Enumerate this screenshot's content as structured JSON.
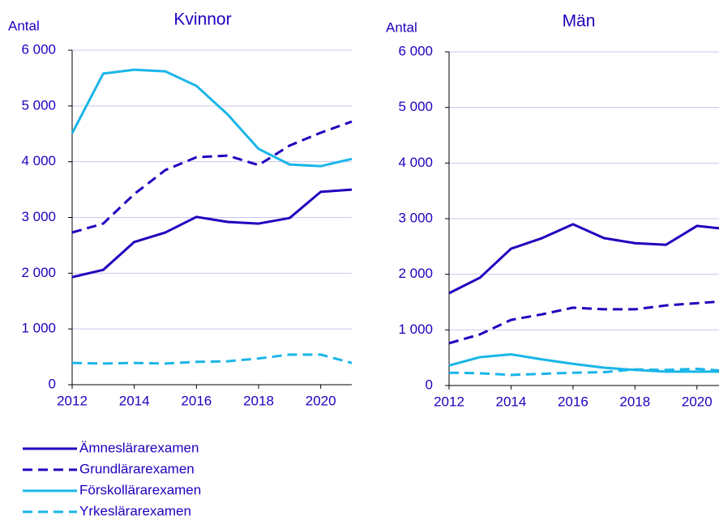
{
  "chart_data": [
    {
      "type": "line",
      "title": "Kvinnor",
      "ylabel": "Antal",
      "x": [
        2012,
        2013,
        2014,
        2015,
        2016,
        2017,
        2018,
        2019,
        2020,
        2021
      ],
      "xlim": [
        2012,
        2021
      ],
      "xticks": [
        2012,
        2014,
        2016,
        2018,
        2020
      ],
      "ylim": [
        0,
        6000
      ],
      "yticks": [
        0,
        {
          "value": 1000,
          "label": "1 000"
        },
        {
          "value": 2000,
          "label": "2 000"
        },
        {
          "value": 3000,
          "label": "3 000"
        },
        {
          "value": 4000,
          "label": "4 000"
        },
        {
          "value": 5000,
          "label": "5 000"
        },
        {
          "value": 6000,
          "label": "6 000"
        }
      ],
      "grid": true,
      "legend": "bottom-left",
      "series": [
        {
          "name": "Ämneslärarexamen",
          "color": "#1e00be",
          "dashed": false,
          "values": [
            1930,
            2060,
            2560,
            2730,
            3010,
            2920,
            2890,
            2990,
            3460,
            3500
          ]
        },
        {
          "name": "Grundlärarexamen",
          "color": "#1e00be",
          "dashed": true,
          "values": [
            2730,
            2890,
            3420,
            3850,
            4080,
            4110,
            3940,
            4290,
            4520,
            4720
          ]
        },
        {
          "name": "Förskollärarexamen",
          "color": "#1ab5e8",
          "dashed": false,
          "values": [
            4510,
            5580,
            5650,
            5620,
            5360,
            4850,
            4230,
            3950,
            3920,
            4050
          ]
        },
        {
          "name": "Yrkeslärarexamen",
          "color": "#1ab5e8",
          "dashed": true,
          "values": [
            390,
            380,
            390,
            380,
            410,
            420,
            470,
            540,
            540,
            390
          ]
        }
      ]
    },
    {
      "type": "line",
      "title": "Män",
      "ylabel": "Antal",
      "x": [
        2012,
        2013,
        2014,
        2015,
        2016,
        2017,
        2018,
        2019,
        2020,
        2021
      ],
      "xlim": [
        2012,
        2021
      ],
      "xticks": [
        2012,
        2014,
        2016,
        2018,
        2020
      ],
      "ylim": [
        0,
        6000
      ],
      "yticks": [
        0,
        {
          "value": 1000,
          "label": "1 000"
        },
        {
          "value": 2000,
          "label": "2 000"
        },
        {
          "value": 3000,
          "label": "3 000"
        },
        {
          "value": 4000,
          "label": "4 000"
        },
        {
          "value": 5000,
          "label": "5 000"
        },
        {
          "value": 6000,
          "label": "6 000"
        }
      ],
      "grid": true,
      "series": [
        {
          "color": "#1e00be",
          "dashed": false,
          "values": [
            1660,
            1940,
            2460,
            2650,
            2900,
            2650,
            2560,
            2530,
            2870,
            2810
          ]
        },
        {
          "color": "#1e00be",
          "dashed": true,
          "values": [
            760,
            920,
            1180,
            1280,
            1400,
            1370,
            1370,
            1440,
            1480,
            1520
          ]
        },
        {
          "color": "#1ab5e8",
          "dashed": false,
          "values": [
            360,
            510,
            560,
            470,
            390,
            320,
            280,
            250,
            250,
            250
          ]
        },
        {
          "color": "#1ab5e8",
          "dashed": true,
          "values": [
            230,
            220,
            190,
            210,
            230,
            240,
            290,
            280,
            300,
            260
          ]
        }
      ]
    }
  ]
}
